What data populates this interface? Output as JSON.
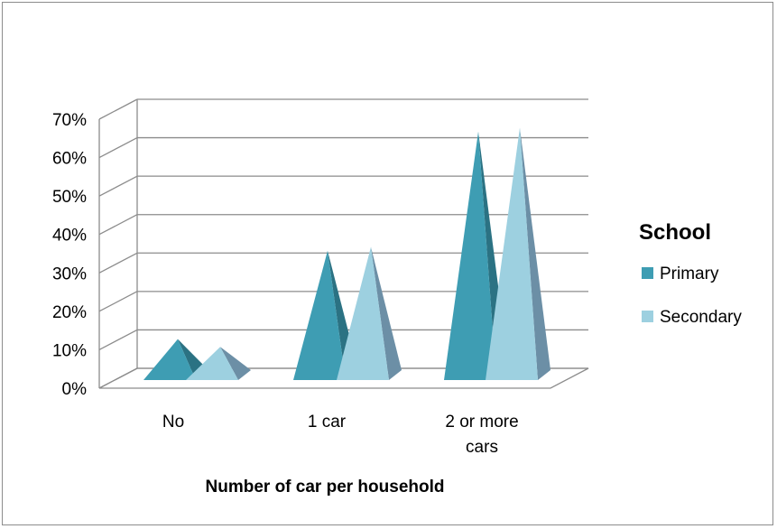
{
  "chart_data": {
    "type": "bar",
    "shape": "pyramid-3d",
    "categories": [
      "No",
      "1 car",
      "2 or more cars"
    ],
    "category_lines": [
      [
        "No"
      ],
      [
        "1 car"
      ],
      [
        "2 or more",
        "cars"
      ]
    ],
    "series": [
      {
        "name": "Primary",
        "values": [
          9,
          32,
          63
        ],
        "color": "#3E9DB3",
        "shade": "#2B7283"
      },
      {
        "name": "Secondary",
        "values": [
          7,
          33,
          64
        ],
        "color": "#9DD0E0",
        "shade": "#6C8FA6"
      }
    ],
    "xlabel": "Number of car per household",
    "ylabel": "",
    "ylim": [
      0,
      70
    ],
    "yticks": [
      "0%",
      "10%",
      "20%",
      "30%",
      "40%",
      "50%",
      "60%",
      "70%"
    ],
    "ytick_values": [
      0,
      10,
      20,
      30,
      40,
      50,
      60,
      70
    ],
    "legend": {
      "title": "School",
      "position": "right"
    },
    "grid": true
  }
}
